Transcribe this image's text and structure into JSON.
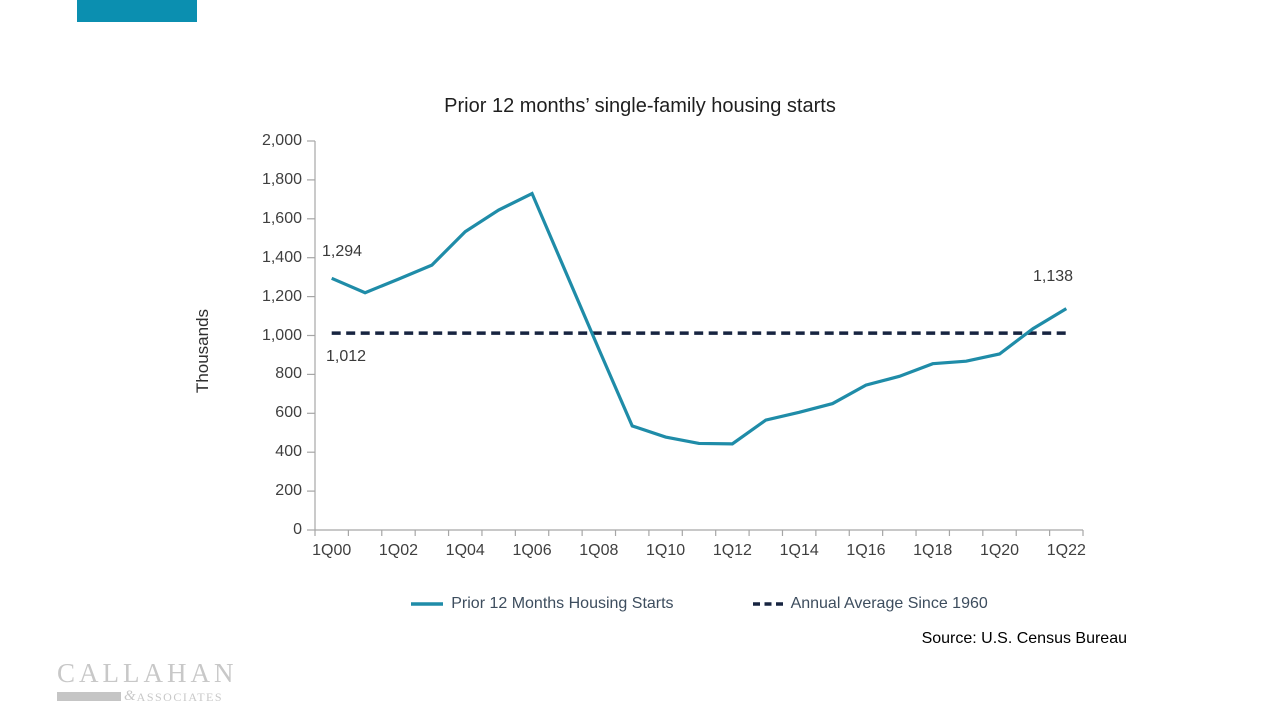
{
  "banner": {
    "color": "#0b8fb0"
  },
  "chart_data": {
    "type": "line",
    "title": "Prior 12 months’ single-family housing starts",
    "ylabel": "Thousands",
    "xlabel": "",
    "ylim": [
      0,
      2000
    ],
    "ytick_step": 200,
    "ytick_labels": [
      "0",
      "200",
      "400",
      "600",
      "800",
      "1,000",
      "1,200",
      "1,400",
      "1,600",
      "1,800",
      "2,000"
    ],
    "x": [
      "1Q00",
      "1Q01",
      "1Q02",
      "1Q03",
      "1Q04",
      "1Q05",
      "1Q06",
      "1Q07",
      "1Q08",
      "1Q09",
      "1Q10",
      "1Q11",
      "1Q12",
      "1Q13",
      "1Q14",
      "1Q15",
      "1Q16",
      "1Q17",
      "1Q18",
      "1Q19",
      "1Q20",
      "1Q21",
      "1Q22"
    ],
    "xtick_labels": [
      "1Q00",
      "1Q02",
      "1Q04",
      "1Q06",
      "1Q08",
      "1Q10",
      "1Q12",
      "1Q14",
      "1Q16",
      "1Q18",
      "1Q20",
      "1Q22"
    ],
    "grid": false,
    "legend_position": "bottom",
    "series": [
      {
        "name": "Prior 12 Months Housing Starts",
        "type": "line",
        "style": "solid",
        "color": "#1f8ca8",
        "values": [
          1294,
          1220,
          1290,
          1362,
          1534,
          1645,
          1730,
          1330,
          930,
          535,
          478,
          445,
          443,
          565,
          605,
          650,
          745,
          790,
          855,
          868,
          905,
          1035,
          1138
        ]
      },
      {
        "name": "Annual Average Since 1960",
        "type": "reference-line",
        "style": "dashed",
        "color": "#172440",
        "value": 1012
      }
    ],
    "annotations": {
      "first_point": "1,294",
      "average_line": "1,012",
      "last_point": "1,138"
    }
  },
  "source": "Source: U.S. Census Bureau",
  "logo": {
    "name": "CALLAHAN",
    "ampersand": "&",
    "associates": "ASSOCIATES"
  }
}
